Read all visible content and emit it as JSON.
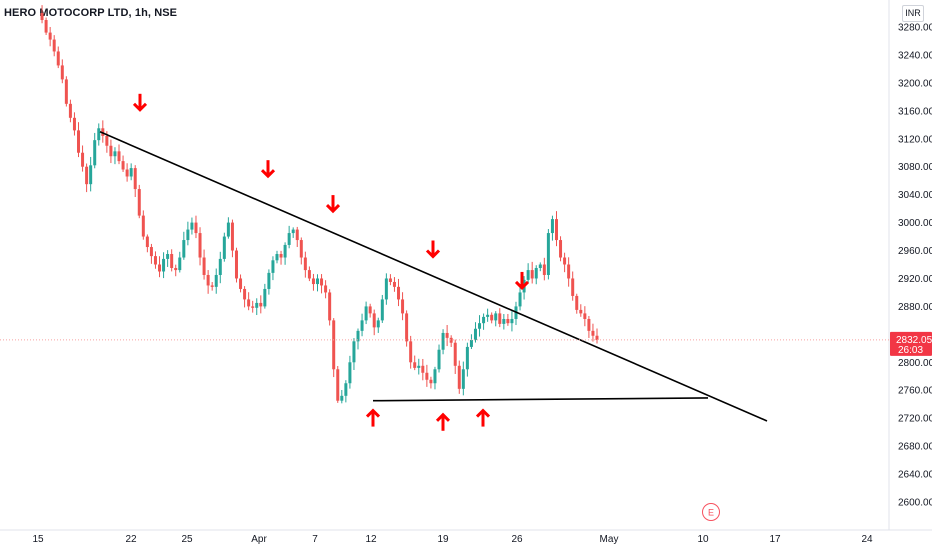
{
  "header": {
    "title": "HERO MOTOCORP LTD, 1h, NSE",
    "currency": "INR"
  },
  "colors": {
    "up": "#26a69a",
    "down": "#ef5350",
    "arrow": "#ff0000",
    "trend": "#000000",
    "label_bg": "#f23645",
    "earnings": "#f7525f"
  },
  "chart_data": {
    "type": "candlestick",
    "symbol": "HERO MOTOCORP LTD",
    "interval": "1h",
    "exchange": "NSE",
    "ylim": [
      2570,
      3300
    ],
    "y_ticks": [
      "3280.00",
      "3240.00",
      "3200.00",
      "3160.00",
      "3120.00",
      "3080.00",
      "3040.00",
      "3000.00",
      "2960.00",
      "2920.00",
      "2880.00",
      "2840.00",
      "2800.00",
      "2760.00",
      "2720.00",
      "2680.00",
      "2640.00",
      "2600.00"
    ],
    "x_tick_labels": [
      "15",
      "22",
      "25",
      "Apr",
      "7",
      "12",
      "19",
      "26",
      "May",
      "10",
      "17",
      "24"
    ],
    "current_price": {
      "value": "2832.05",
      "countdown": "26:03"
    },
    "earnings_marker": "E",
    "price_path": [
      3300,
      3290,
      3272,
      3262,
      3245,
      3225,
      3205,
      3170,
      3150,
      3132,
      3100,
      3080,
      3055,
      3082,
      3118,
      3135,
      3124,
      3110,
      3095,
      3102,
      3088,
      3076,
      3066,
      3078,
      3048,
      3010,
      2980,
      2965,
      2952,
      2940,
      2930,
      2948,
      2955,
      2935,
      2932,
      2950,
      2975,
      2990,
      3000,
      2985,
      2950,
      2925,
      2910,
      2908,
      2925,
      2948,
      2980,
      3000,
      2960,
      2920,
      2905,
      2890,
      2880,
      2878,
      2885,
      2880,
      2905,
      2928,
      2946,
      2955,
      2950,
      2968,
      2985,
      2990,
      2975,
      2950,
      2932,
      2920,
      2912,
      2920,
      2910,
      2900,
      2860,
      2790,
      2745,
      2752,
      2770,
      2800,
      2830,
      2845,
      2860,
      2880,
      2870,
      2850,
      2860,
      2890,
      2920,
      2915,
      2908,
      2890,
      2870,
      2830,
      2800,
      2792,
      2795,
      2785,
      2775,
      2770,
      2790,
      2818,
      2842,
      2835,
      2828,
      2795,
      2762,
      2790,
      2822,
      2832,
      2848,
      2856,
      2865,
      2868,
      2860,
      2870,
      2855,
      2862,
      2856,
      2862,
      2880,
      2900,
      2918,
      2932,
      2920,
      2935,
      2940,
      2925,
      2985,
      3005,
      2975,
      2950,
      2940,
      2920,
      2895,
      2875,
      2870,
      2862,
      2845,
      2838,
      2832
    ],
    "annotations": {
      "down_arrows": [
        3150,
        3055,
        3005,
        2940,
        2895
      ],
      "up_arrows": [
        2728,
        2722,
        2728
      ],
      "trendline": {
        "from": [
          3130,
          3130
        ],
        "to": [
          2716,
          2716
        ],
        "label": ""
      },
      "support_line": {
        "from": 2745,
        "to": 2749
      }
    },
    "xlabel": "",
    "ylabel": "",
    "grid": false,
    "legend": "none"
  }
}
